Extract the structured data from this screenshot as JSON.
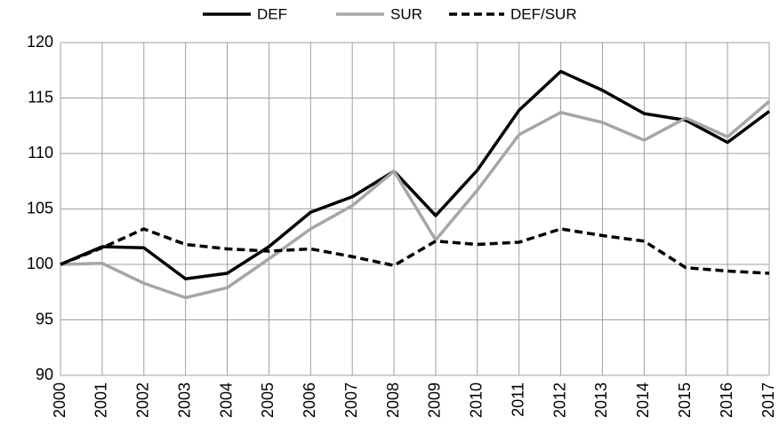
{
  "chart_data": {
    "type": "line",
    "categories": [
      "2000",
      "2001",
      "2002",
      "2003",
      "2004",
      "2005",
      "2006",
      "2007",
      "2008",
      "2009",
      "2010",
      "2011",
      "2012",
      "2013",
      "2014",
      "2015",
      "2016",
      "2017"
    ],
    "series": [
      {
        "name": "DEF",
        "color": "#000000",
        "dashed": false,
        "values": [
          100,
          101.6,
          101.5,
          98.7,
          99.2,
          101.6,
          104.7,
          106.1,
          108.4,
          104.4,
          108.5,
          113.9,
          117.4,
          115.7,
          113.6,
          113.0,
          111.0,
          113.8
        ]
      },
      {
        "name": "SUR",
        "color": "#a6a6a6",
        "dashed": false,
        "values": [
          100,
          100.1,
          98.3,
          97.0,
          97.9,
          100.5,
          103.2,
          105.3,
          108.4,
          102.2,
          106.7,
          111.7,
          113.7,
          112.8,
          111.2,
          113.2,
          111.5,
          114.7
        ]
      },
      {
        "name": "DEF/SUR",
        "color": "#000000",
        "dashed": true,
        "values": [
          100,
          101.5,
          103.2,
          101.8,
          101.4,
          101.2,
          101.4,
          100.7,
          99.9,
          102.1,
          101.8,
          102.0,
          103.2,
          102.6,
          102.1,
          99.7,
          99.4,
          99.2
        ]
      }
    ],
    "ylim": [
      90,
      120
    ],
    "yticks": [
      90,
      95,
      100,
      105,
      110,
      115,
      120
    ],
    "grid": true,
    "legend": "top"
  }
}
